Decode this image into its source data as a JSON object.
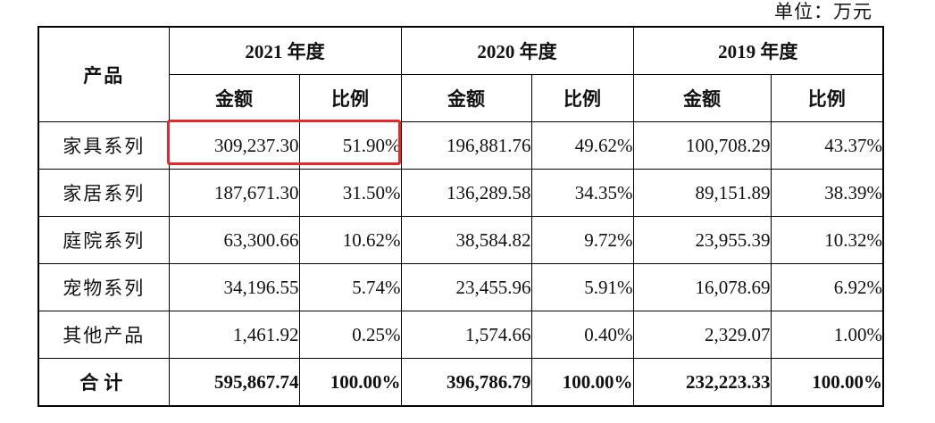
{
  "unit_note": "单位：万元",
  "header": {
    "product": "产品",
    "years": [
      "2021 年度",
      "2020 年度",
      "2019 年度"
    ],
    "amount": "金额",
    "ratio": "比例"
  },
  "rows": [
    {
      "name": "家具系列",
      "values": [
        "309,237.30",
        "51.90%",
        "196,881.76",
        "49.62%",
        "100,708.29",
        "43.37%"
      ]
    },
    {
      "name": "家居系列",
      "values": [
        "187,671.30",
        "31.50%",
        "136,289.58",
        "34.35%",
        "89,151.89",
        "38.39%"
      ]
    },
    {
      "name": "庭院系列",
      "values": [
        "63,300.66",
        "10.62%",
        "38,584.82",
        "9.72%",
        "23,955.39",
        "10.32%"
      ]
    },
    {
      "name": "宠物系列",
      "values": [
        "34,196.55",
        "5.74%",
        "23,455.96",
        "5.91%",
        "16,078.69",
        "6.92%"
      ]
    },
    {
      "name": "其他产品",
      "values": [
        "1,461.92",
        "0.25%",
        "1,574.66",
        "0.40%",
        "2,329.07",
        "1.00%"
      ]
    }
  ],
  "total": {
    "name": "合计",
    "values": [
      "595,867.74",
      "100.00%",
      "396,786.79",
      "100.00%",
      "232,223.33",
      "100.00%"
    ]
  },
  "highlight_color": "#e8262a"
}
